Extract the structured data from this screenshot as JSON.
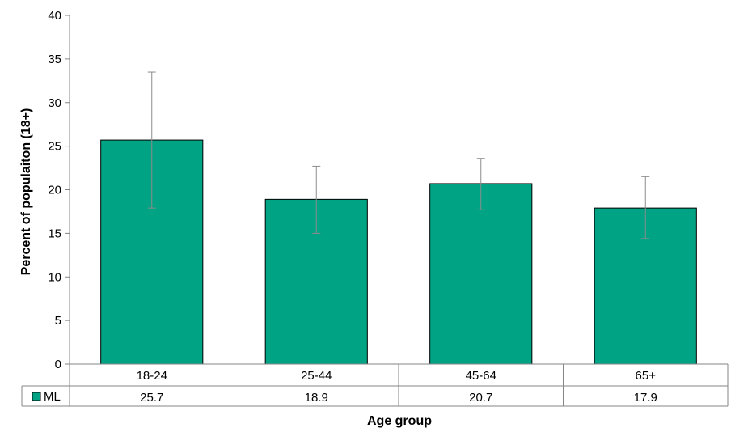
{
  "chart_data": {
    "type": "bar",
    "categories": [
      "18-24",
      "25-44",
      "45-64",
      "65+"
    ],
    "series": [
      {
        "name": "ML",
        "values": [
          25.7,
          18.9,
          20.7,
          17.9
        ],
        "error_low": [
          17.9,
          15.0,
          17.7,
          14.4
        ],
        "error_high": [
          33.5,
          22.7,
          23.6,
          21.5
        ],
        "color": "#00a383"
      }
    ],
    "xlabel": "Age group",
    "ylabel": "Percent of populaiton (18+)",
    "ylim": [
      0,
      40
    ],
    "yticks": [
      0,
      5,
      10,
      15,
      20,
      25,
      30,
      35,
      40
    ],
    "data_table": true,
    "table_values": [
      "25.7",
      "18.9",
      "20.7",
      "17.9"
    ],
    "legend_key": "ML",
    "grid": false
  }
}
